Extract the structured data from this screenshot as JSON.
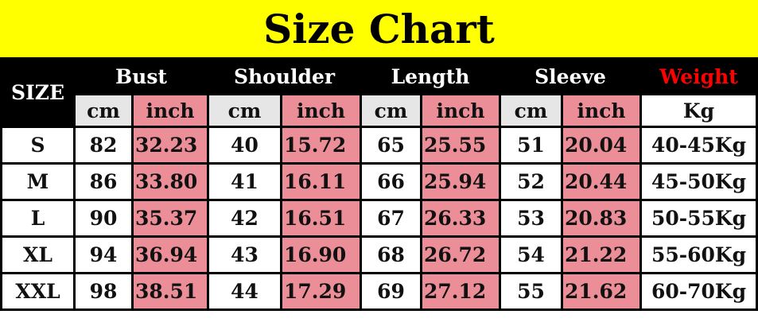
{
  "title": "Size Chart",
  "headers": {
    "size": "SIZE",
    "bust": "Bust",
    "shoulder": "Shoulder",
    "length": "Length",
    "sleeve": "Sleeve",
    "weight": "Weight"
  },
  "units": {
    "cm": "cm",
    "inch": "inch",
    "kg": "Kg"
  },
  "colors": {
    "title_bg": "#ffff00",
    "inch_bg": "#eb8e98",
    "cm_bg": "#e6e6e6",
    "weight_label": "#ff0000"
  },
  "rows": [
    {
      "size": "S",
      "bust_cm": "82",
      "bust_in": "32.23",
      "shoulder_cm": "40",
      "shoulder_in": "15.72",
      "length_cm": "65",
      "length_in": "25.55",
      "sleeve_cm": "51",
      "sleeve_in": "20.04",
      "weight": "40-45Kg"
    },
    {
      "size": "M",
      "bust_cm": "86",
      "bust_in": "33.80",
      "shoulder_cm": "41",
      "shoulder_in": "16.11",
      "length_cm": "66",
      "length_in": "25.94",
      "sleeve_cm": "52",
      "sleeve_in": "20.44",
      "weight": "45-50Kg"
    },
    {
      "size": "L",
      "bust_cm": "90",
      "bust_in": "35.37",
      "shoulder_cm": "42",
      "shoulder_in": "16.51",
      "length_cm": "67",
      "length_in": "26.33",
      "sleeve_cm": "53",
      "sleeve_in": "20.83",
      "weight": "50-55Kg"
    },
    {
      "size": "XL",
      "bust_cm": "94",
      "bust_in": "36.94",
      "shoulder_cm": "43",
      "shoulder_in": "16.90",
      "length_cm": "68",
      "length_in": "26.72",
      "sleeve_cm": "54",
      "sleeve_in": "21.22",
      "weight": "55-60Kg"
    },
    {
      "size": "XXL",
      "bust_cm": "98",
      "bust_in": "38.51",
      "shoulder_cm": "44",
      "shoulder_in": "17.29",
      "length_cm": "69",
      "length_in": "27.12",
      "sleeve_cm": "55",
      "sleeve_in": "21.62",
      "weight": "60-70Kg"
    }
  ]
}
